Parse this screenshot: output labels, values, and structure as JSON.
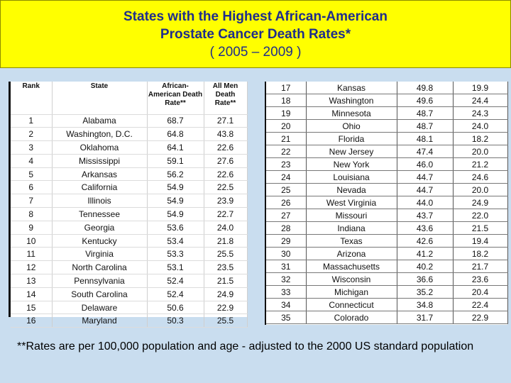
{
  "title": {
    "line1": "States with the Highest African-American",
    "line2": "Prostate Cancer Death Rates*",
    "line3": "( 2005 – 2009 )"
  },
  "table": {
    "headers": [
      "Rank",
      "State",
      "African-American Death Rate**",
      "All Men Death Rate**"
    ],
    "left_rows": [
      [
        "1",
        "Alabama",
        "68.7",
        "27.1"
      ],
      [
        "2",
        "Washington, D.C.",
        "64.8",
        "43.8"
      ],
      [
        "3",
        "Oklahoma",
        "64.1",
        "22.6"
      ],
      [
        "4",
        "Mississippi",
        "59.1",
        "27.6"
      ],
      [
        "5",
        "Arkansas",
        "56.2",
        "22.6"
      ],
      [
        "6",
        "California",
        "54.9",
        "22.5"
      ],
      [
        "7",
        "Illinois",
        "54.9",
        "23.9"
      ],
      [
        "8",
        "Tennessee",
        "54.9",
        "22.7"
      ],
      [
        "9",
        "Georgia",
        "53.6",
        "24.0"
      ],
      [
        "10",
        "Kentucky",
        "53.4",
        "21.8"
      ],
      [
        "11",
        "Virginia",
        "53.3",
        "25.5"
      ],
      [
        "12",
        "North Carolina",
        "53.1",
        "23.5"
      ],
      [
        "13",
        "Pennsylvania",
        "52.4",
        "21.5"
      ],
      [
        "14",
        "South Carolina",
        "52.4",
        "24.9"
      ],
      [
        "15",
        "Delaware",
        "50.6",
        "22.9"
      ],
      [
        "16",
        "Maryland",
        "50.3",
        "25.5"
      ]
    ],
    "right_rows": [
      [
        "17",
        "Kansas",
        "49.8",
        "19.9"
      ],
      [
        "18",
        "Washington",
        "49.6",
        "24.4"
      ],
      [
        "19",
        "Minnesota",
        "48.7",
        "24.3"
      ],
      [
        "20",
        "Ohio",
        "48.7",
        "24.0"
      ],
      [
        "21",
        "Florida",
        "48.1",
        "18.2"
      ],
      [
        "22",
        "New Jersey",
        "47.4",
        "20.0"
      ],
      [
        "23",
        "New York",
        "46.0",
        "21.2"
      ],
      [
        "24",
        "Louisiana",
        "44.7",
        "24.6"
      ],
      [
        "25",
        "Nevada",
        "44.7",
        "20.0"
      ],
      [
        "26",
        "West Virginia",
        "44.0",
        "24.9"
      ],
      [
        "27",
        "Missouri",
        "43.7",
        "22.0"
      ],
      [
        "28",
        "Indiana",
        "43.6",
        "21.5"
      ],
      [
        "29",
        "Texas",
        "42.6",
        "19.4"
      ],
      [
        "30",
        "Arizona",
        "41.2",
        "18.2"
      ],
      [
        "31",
        "Massachusetts",
        "40.2",
        "21.7"
      ],
      [
        "32",
        "Wisconsin",
        "36.6",
        "23.6"
      ],
      [
        "33",
        "Michigan",
        "35.2",
        "20.4"
      ],
      [
        "34",
        "Connecticut",
        "34.8",
        "22.4"
      ],
      [
        "35",
        "Colorado",
        "31.7",
        "22.9"
      ]
    ]
  },
  "footnote": "**Rates are per 100,000 population and age - adjusted to the 2000 US standard population"
}
